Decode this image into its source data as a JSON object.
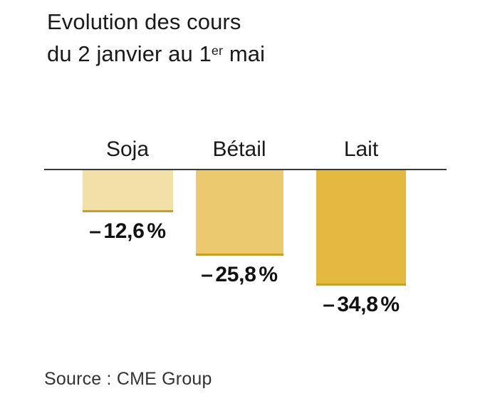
{
  "title": {
    "line1": "Evolution des cours",
    "line2_prefix": "du 2 janvier au 1",
    "line2_superscript": "er",
    "line2_suffix": " mai"
  },
  "chart_data": {
    "type": "bar",
    "title": "Evolution des cours du 2 janvier au 1er mai",
    "categories": [
      "Soja",
      "Bétail",
      "Lait"
    ],
    "values": [
      -12.6,
      -25.8,
      -34.8
    ],
    "value_labels": [
      "– 12,6 %",
      "– 25,8 %",
      "– 34,8 %"
    ],
    "unit": "%",
    "baseline_value": 0,
    "orientation": "columns-hanging-below-zero-line",
    "grid": false,
    "legend": false,
    "bar_colors": [
      "#f2e0a9",
      "#ebc96f",
      "#e3b93f"
    ],
    "bar_bottom_border_color": "#cf9d1c",
    "baseline_color": "#3a3a3a",
    "text_color": "#1a1a1a",
    "background_color": "#ffffff"
  },
  "source": "Source : CME Group"
}
